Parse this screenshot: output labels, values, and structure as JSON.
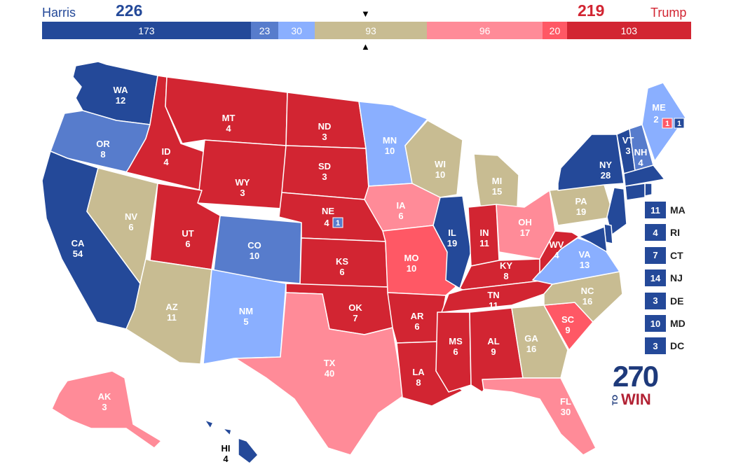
{
  "header": {
    "dem_name": "Harris",
    "dem_total": "226",
    "rep_name": "Trump",
    "rep_total": "219",
    "arrow_down": "▼",
    "arrow_up": "▲",
    "segments": [
      {
        "label": "173",
        "value": 173,
        "color": "#244999"
      },
      {
        "label": "23",
        "value": 23,
        "color": "#577ccc"
      },
      {
        "label": "30",
        "value": 30,
        "color": "#8aafff"
      },
      {
        "label": "93",
        "value": 93,
        "color": "#c8bc92"
      },
      {
        "label": "96",
        "value": 96,
        "color": "#ff8b98"
      },
      {
        "label": "20",
        "value": 20,
        "color": "#ff5865"
      },
      {
        "label": "103",
        "value": 103,
        "color": "#d22532"
      }
    ]
  },
  "colors": {
    "safe_d": "#244999",
    "likely_d": "#577ccc",
    "lean_d": "#8aafff",
    "tossup": "#c8bc92",
    "lean_r": "#ff8b98",
    "likely_r": "#ff5865",
    "safe_r": "#d22532",
    "dem_text": "#244999",
    "rep_text": "#d22532"
  },
  "states": [
    {
      "abbr": "WA",
      "ev": "12",
      "rating": "safe_d"
    },
    {
      "abbr": "OR",
      "ev": "8",
      "rating": "likely_d"
    },
    {
      "abbr": "CA",
      "ev": "54",
      "rating": "safe_d"
    },
    {
      "abbr": "ID",
      "ev": "4",
      "rating": "safe_r"
    },
    {
      "abbr": "NV",
      "ev": "6",
      "rating": "tossup"
    },
    {
      "abbr": "MT",
      "ev": "4",
      "rating": "safe_r"
    },
    {
      "abbr": "WY",
      "ev": "3",
      "rating": "safe_r"
    },
    {
      "abbr": "UT",
      "ev": "6",
      "rating": "safe_r"
    },
    {
      "abbr": "AZ",
      "ev": "11",
      "rating": "tossup"
    },
    {
      "abbr": "CO",
      "ev": "10",
      "rating": "likely_d"
    },
    {
      "abbr": "NM",
      "ev": "5",
      "rating": "lean_d"
    },
    {
      "abbr": "ND",
      "ev": "3",
      "rating": "safe_r"
    },
    {
      "abbr": "SD",
      "ev": "3",
      "rating": "safe_r"
    },
    {
      "abbr": "NE",
      "ev": "4",
      "rating": "safe_r"
    },
    {
      "abbr": "KS",
      "ev": "6",
      "rating": "safe_r"
    },
    {
      "abbr": "OK",
      "ev": "7",
      "rating": "safe_r"
    },
    {
      "abbr": "TX",
      "ev": "40",
      "rating": "lean_r"
    },
    {
      "abbr": "MN",
      "ev": "10",
      "rating": "lean_d"
    },
    {
      "abbr": "IA",
      "ev": "6",
      "rating": "lean_r"
    },
    {
      "abbr": "MO",
      "ev": "10",
      "rating": "likely_r"
    },
    {
      "abbr": "AR",
      "ev": "6",
      "rating": "safe_r"
    },
    {
      "abbr": "LA",
      "ev": "8",
      "rating": "safe_r"
    },
    {
      "abbr": "WI",
      "ev": "10",
      "rating": "tossup"
    },
    {
      "abbr": "IL",
      "ev": "19",
      "rating": "safe_d"
    },
    {
      "abbr": "MI",
      "ev": "15",
      "rating": "tossup"
    },
    {
      "abbr": "IN",
      "ev": "11",
      "rating": "safe_r"
    },
    {
      "abbr": "OH",
      "ev": "17",
      "rating": "lean_r"
    },
    {
      "abbr": "KY",
      "ev": "8",
      "rating": "safe_r"
    },
    {
      "abbr": "TN",
      "ev": "11",
      "rating": "safe_r"
    },
    {
      "abbr": "MS",
      "ev": "6",
      "rating": "safe_r"
    },
    {
      "abbr": "AL",
      "ev": "9",
      "rating": "safe_r"
    },
    {
      "abbr": "GA",
      "ev": "16",
      "rating": "tossup"
    },
    {
      "abbr": "FL",
      "ev": "30",
      "rating": "lean_r"
    },
    {
      "abbr": "SC",
      "ev": "9",
      "rating": "likely_r"
    },
    {
      "abbr": "NC",
      "ev": "16",
      "rating": "tossup"
    },
    {
      "abbr": "VA",
      "ev": "13",
      "rating": "lean_d"
    },
    {
      "abbr": "WV",
      "ev": "4",
      "rating": "safe_r"
    },
    {
      "abbr": "PA",
      "ev": "19",
      "rating": "tossup"
    },
    {
      "abbr": "NY",
      "ev": "28",
      "rating": "safe_d"
    },
    {
      "abbr": "VT",
      "ev": "3",
      "rating": "safe_d"
    },
    {
      "abbr": "NH",
      "ev": "4",
      "rating": "likely_d"
    },
    {
      "abbr": "ME",
      "ev": "2",
      "rating": "lean_d"
    },
    {
      "abbr": "AK",
      "ev": "3",
      "rating": "lean_r"
    },
    {
      "abbr": "HI",
      "ev": "4",
      "rating": "safe_d"
    }
  ],
  "district_boxes": {
    "ne_cd2": "1",
    "me_cd1": "1",
    "me_cd2": "1"
  },
  "small_states": [
    {
      "abbr": "MA",
      "ev": "11",
      "rating": "safe_d"
    },
    {
      "abbr": "RI",
      "ev": "4",
      "rating": "safe_d"
    },
    {
      "abbr": "CT",
      "ev": "7",
      "rating": "safe_d"
    },
    {
      "abbr": "NJ",
      "ev": "14",
      "rating": "safe_d"
    },
    {
      "abbr": "DE",
      "ev": "3",
      "rating": "safe_d"
    },
    {
      "abbr": "MD",
      "ev": "10",
      "rating": "safe_d"
    },
    {
      "abbr": "DC",
      "ev": "3",
      "rating": "safe_d"
    }
  ],
  "logo": {
    "number": "270",
    "to": "TO",
    "win": "WIN"
  }
}
